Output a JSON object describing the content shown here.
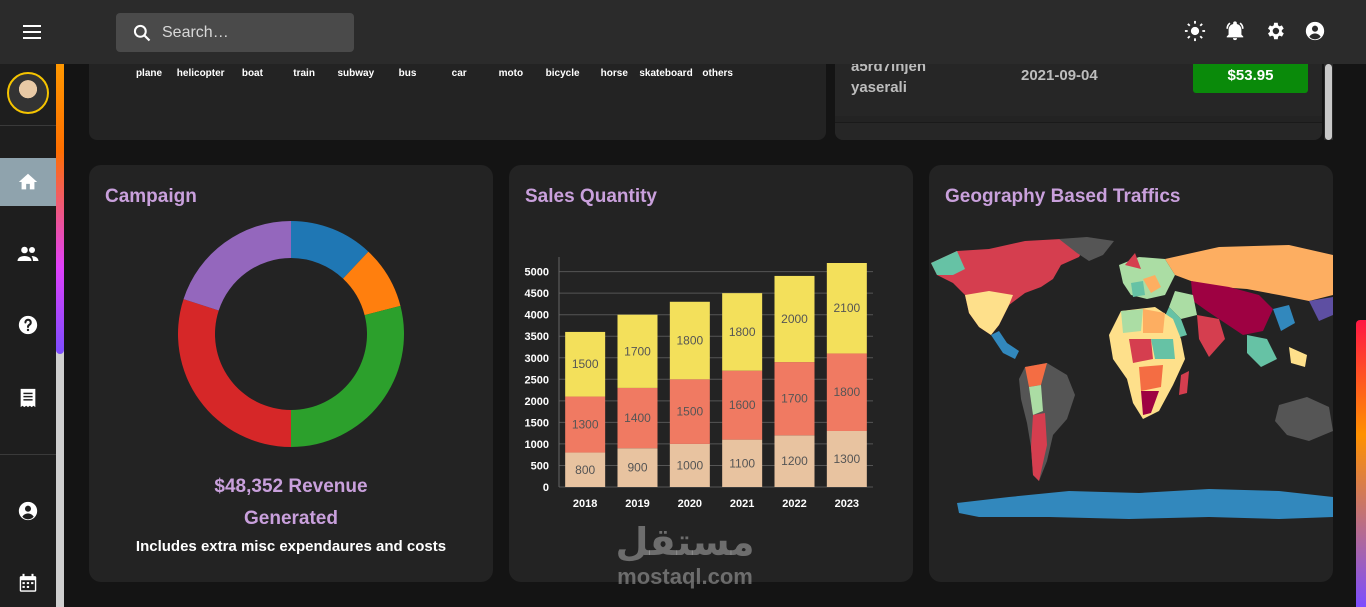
{
  "header": {
    "search_placeholder": "Search…",
    "icons": [
      "menu-icon",
      "search-icon",
      "sun-icon",
      "bell-icon",
      "settings-icon",
      "account-icon"
    ]
  },
  "sidebar": {
    "items": [
      {
        "name": "home",
        "icon": "home-icon",
        "active": true
      },
      {
        "name": "team",
        "icon": "people-icon"
      },
      {
        "name": "help",
        "icon": "help-icon"
      },
      {
        "name": "invoices",
        "icon": "receipt-icon"
      },
      {
        "name": "profile",
        "icon": "account-icon"
      },
      {
        "name": "calendar",
        "icon": "calendar-icon"
      }
    ]
  },
  "transport_labels": [
    "plane",
    "helicopter",
    "boat",
    "train",
    "subway",
    "bus",
    "car",
    "moto",
    "bicycle",
    "horse",
    "skateboard",
    "others"
  ],
  "recent_transaction": {
    "id": "a5rd7injen",
    "user": "yaserali",
    "date": "2021-09-04",
    "amount": "$53.95"
  },
  "campaign": {
    "title": "Campaign",
    "revenue_line1": "$48,352 Revenue",
    "revenue_line2": "Generated",
    "subtitle": "Includes extra misc expendaures and costs",
    "donut_colors": [
      "#1f77b4",
      "#ff7f0e",
      "#2ca02c",
      "#d62728",
      "#9467bd"
    ],
    "donut_shares": [
      0.12,
      0.09,
      0.29,
      0.3,
      0.2
    ]
  },
  "sales": {
    "title": "Sales Quantity"
  },
  "chart_data": {
    "type": "bar",
    "stacked": true,
    "categories": [
      "2018",
      "2019",
      "2020",
      "2021",
      "2022",
      "2023"
    ],
    "series": [
      {
        "values": [
          800,
          900,
          1000,
          1100,
          1200,
          1300
        ],
        "color": "#e8c3a0"
      },
      {
        "values": [
          1300,
          1400,
          1500,
          1600,
          1700,
          1800
        ],
        "color": "#f07a62"
      },
      {
        "values": [
          1500,
          1700,
          1800,
          1800,
          2000,
          2100
        ],
        "color": "#f3e05b"
      }
    ],
    "yticks": [
      0,
      500,
      1000,
      1500,
      2000,
      2500,
      3000,
      3500,
      4000,
      4500,
      5000
    ],
    "ylim": [
      0,
      5200
    ],
    "grid": true
  },
  "geo": {
    "title": "Geography Based Traffics"
  },
  "watermark": {
    "arabic": "مستقل",
    "latin": "mostaql.com"
  }
}
